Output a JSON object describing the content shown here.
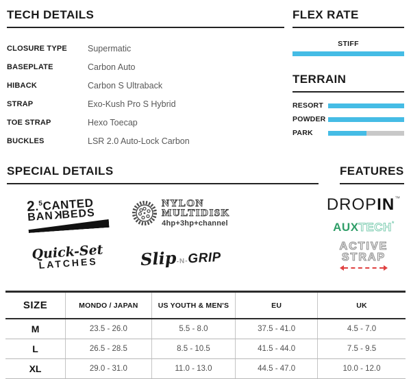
{
  "colors": {
    "accent_blue": "#45bce5",
    "bar_gray": "#c8c8c8",
    "heading_black": "#1a1a1a",
    "aux_green": "#2f9e68",
    "aux_mint": "#7fcdb2",
    "arrow_red": "#e04040"
  },
  "tech_details": {
    "title": "TECH DETAILS",
    "rows": [
      {
        "label": "CLOSURE TYPE",
        "value": "Supermatic"
      },
      {
        "label": "BASEPLATE",
        "value": "Carbon Auto"
      },
      {
        "label": "HIBACK",
        "value": "Carbon S Ultraback"
      },
      {
        "label": "STRAP",
        "value": "Exo-Kush Pro S Hybrid"
      },
      {
        "label": "TOE STRAP",
        "value": "Hexo Toecap"
      },
      {
        "label": "BUCKLES",
        "value": "LSR 2.0 Auto-Lock Carbon"
      }
    ]
  },
  "flex_rate": {
    "title": "FLEX RATE",
    "level_label": "STIFF",
    "fill_pct": 100
  },
  "terrain": {
    "title": "TERRAIN",
    "rows": [
      {
        "label": "RESORT",
        "fill_pct": 100
      },
      {
        "label": "POWDER",
        "fill_pct": 100
      },
      {
        "label": "PARK",
        "fill_pct": 50
      }
    ]
  },
  "special_details": {
    "title": "SPECIAL DETAILS",
    "canted_bankbeds": {
      "degree_base": "2",
      "degree_dot": ".",
      "degree_sup": "5",
      "word1": "CANTED",
      "word2_a": "BAN",
      "word2_k": "K",
      "word2_b": "BEDS"
    },
    "nylon_multidisk": {
      "icon": "multidisk-icon",
      "line1": "NYLON",
      "line2": "MULTIDISK",
      "subtext": "4hp+3hp+channel"
    },
    "quick_set_latches": {
      "line1": "Quick-Set",
      "line2": "LATCHES"
    },
    "slip_n_grip": {
      "part1": "Slip",
      "part2": "-N-",
      "part3": "GRIP"
    }
  },
  "features": {
    "title": "FEATURES",
    "dropin": {
      "part1": "DROP",
      "part2": "IN",
      "tm": "™"
    },
    "auxtech": {
      "part1": "AUX",
      "part2": "TECH",
      "mark": "*"
    },
    "active_strap": {
      "line1": "ACTIVE",
      "line2": "STRAP"
    }
  },
  "sizing_table": {
    "headers": [
      "SIZE",
      "MONDO / JAPAN",
      "US YOUTH & MEN'S",
      "EU",
      "UK"
    ],
    "rows": [
      [
        "M",
        "23.5 - 26.0",
        "5.5 - 8.0",
        "37.5 - 41.0",
        "4.5 - 7.0"
      ],
      [
        "L",
        "26.5 - 28.5",
        "8.5 - 10.5",
        "41.5 - 44.0",
        "7.5 - 9.5"
      ],
      [
        "XL",
        "29.0 - 31.0",
        "11.0 - 13.0",
        "44.5 - 47.0",
        "10.0 - 12.0"
      ]
    ]
  }
}
